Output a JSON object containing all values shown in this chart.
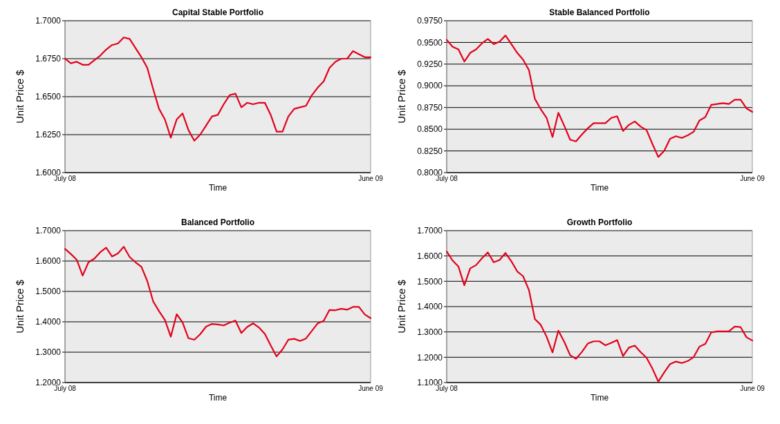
{
  "chart_data": [
    {
      "type": "line",
      "title": "Capital Stable Portfolio",
      "xlabel": "Time",
      "ylabel": "Unit Price $",
      "grid": "y",
      "marker": "none",
      "categories": [
        "July 08",
        null,
        null,
        null,
        null,
        null,
        null,
        null,
        null,
        null,
        null,
        null,
        null,
        null,
        null,
        null,
        null,
        null,
        null,
        null,
        null,
        null,
        null,
        null,
        null,
        null,
        null,
        null,
        null,
        null,
        null,
        null,
        null,
        null,
        null,
        null,
        null,
        null,
        null,
        null,
        null,
        null,
        null,
        null,
        null,
        null,
        null,
        null,
        null,
        null,
        null,
        null,
        "June 09"
      ],
      "ylim": [
        1.6,
        1.7
      ],
      "yticks": [
        {
          "value": 1.6,
          "label": "1.6000"
        },
        {
          "value": 1.625,
          "label": "1.6250"
        },
        {
          "value": 1.65,
          "label": "1.6500"
        },
        {
          "value": 1.675,
          "label": "1.6750"
        },
        {
          "value": 1.7,
          "label": "1.7000"
        }
      ],
      "series": [
        {
          "color": "#e3001b",
          "values": [
            1.675,
            1.672,
            1.673,
            1.671,
            1.671,
            1.674,
            1.677,
            1.681,
            1.684,
            1.685,
            1.689,
            1.688,
            1.682,
            1.676,
            1.669,
            1.655,
            1.642,
            1.635,
            1.623,
            1.635,
            1.639,
            1.628,
            1.621,
            1.625,
            1.631,
            1.637,
            1.638,
            1.645,
            1.651,
            1.652,
            1.643,
            1.646,
            1.645,
            1.646,
            1.646,
            1.638,
            1.627,
            1.627,
            1.637,
            1.642,
            1.643,
            1.644,
            1.651,
            1.656,
            1.66,
            1.669,
            1.673,
            1.675,
            1.675,
            1.68,
            1.678,
            1.676,
            1.676
          ]
        }
      ]
    },
    {
      "type": "line",
      "title": "Stable Balanced Portfolio",
      "xlabel": "Time",
      "ylabel": "Unit Price $",
      "grid": "y",
      "marker": "none",
      "categories": [
        "July 08",
        null,
        null,
        null,
        null,
        null,
        null,
        null,
        null,
        null,
        null,
        null,
        null,
        null,
        null,
        null,
        null,
        null,
        null,
        null,
        null,
        null,
        null,
        null,
        null,
        null,
        null,
        null,
        null,
        null,
        null,
        null,
        null,
        null,
        null,
        null,
        null,
        null,
        null,
        null,
        null,
        null,
        null,
        null,
        null,
        null,
        null,
        null,
        null,
        null,
        null,
        null,
        "June 09"
      ],
      "ylim": [
        0.8,
        0.975
      ],
      "yticks": [
        {
          "value": 0.8,
          "label": "0.8000"
        },
        {
          "value": 0.825,
          "label": "0.8250"
        },
        {
          "value": 0.85,
          "label": "0.8500"
        },
        {
          "value": 0.875,
          "label": "0.8750"
        },
        {
          "value": 0.9,
          "label": "0.9000"
        },
        {
          "value": 0.925,
          "label": "0.9250"
        },
        {
          "value": 0.95,
          "label": "0.9500"
        },
        {
          "value": 0.975,
          "label": "0.9750"
        }
      ],
      "series": [
        {
          "color": "#e3001b",
          "values": [
            0.953,
            0.945,
            0.942,
            0.928,
            0.938,
            0.942,
            0.949,
            0.954,
            0.948,
            0.951,
            0.958,
            0.948,
            0.938,
            0.93,
            0.918,
            0.885,
            0.873,
            0.863,
            0.841,
            0.869,
            0.854,
            0.838,
            0.836,
            0.844,
            0.851,
            0.857,
            0.857,
            0.857,
            0.863,
            0.865,
            0.848,
            0.855,
            0.859,
            0.853,
            0.849,
            0.833,
            0.818,
            0.825,
            0.839,
            0.842,
            0.84,
            0.843,
            0.847,
            0.86,
            0.864,
            0.878,
            0.879,
            0.88,
            0.879,
            0.884,
            0.884,
            0.874,
            0.87
          ]
        }
      ]
    },
    {
      "type": "line",
      "title": "Balanced Portfolio",
      "xlabel": "Time",
      "ylabel": "Unit Price $",
      "grid": "y",
      "marker": "none",
      "categories": [
        "July 08",
        null,
        null,
        null,
        null,
        null,
        null,
        null,
        null,
        null,
        null,
        null,
        null,
        null,
        null,
        null,
        null,
        null,
        null,
        null,
        null,
        null,
        null,
        null,
        null,
        null,
        null,
        null,
        null,
        null,
        null,
        null,
        null,
        null,
        null,
        null,
        null,
        null,
        null,
        null,
        null,
        null,
        null,
        null,
        null,
        null,
        null,
        null,
        null,
        null,
        null,
        null,
        "June 09"
      ],
      "ylim": [
        1.2,
        1.7
      ],
      "yticks": [
        {
          "value": 1.2,
          "label": "1.2000"
        },
        {
          "value": 1.3,
          "label": "1.3000"
        },
        {
          "value": 1.4,
          "label": "1.4000"
        },
        {
          "value": 1.5,
          "label": "1.5000"
        },
        {
          "value": 1.6,
          "label": "1.6000"
        },
        {
          "value": 1.7,
          "label": "1.7000"
        }
      ],
      "series": [
        {
          "color": "#e3001b",
          "values": [
            1.64,
            1.623,
            1.604,
            1.552,
            1.596,
            1.608,
            1.629,
            1.644,
            1.615,
            1.625,
            1.647,
            1.613,
            1.596,
            1.581,
            1.534,
            1.467,
            1.435,
            1.406,
            1.351,
            1.425,
            1.398,
            1.346,
            1.341,
            1.359,
            1.384,
            1.393,
            1.391,
            1.388,
            1.397,
            1.404,
            1.363,
            1.383,
            1.395,
            1.381,
            1.36,
            1.322,
            1.286,
            1.309,
            1.341,
            1.344,
            1.337,
            1.345,
            1.37,
            1.395,
            1.403,
            1.439,
            1.438,
            1.443,
            1.44,
            1.449,
            1.449,
            1.424,
            1.412
          ]
        }
      ]
    },
    {
      "type": "line",
      "title": "Growth Portfolio",
      "xlabel": "Time",
      "ylabel": "Unit Price $",
      "grid": "y",
      "marker": "none",
      "categories": [
        "July 08",
        null,
        null,
        null,
        null,
        null,
        null,
        null,
        null,
        null,
        null,
        null,
        null,
        null,
        null,
        null,
        null,
        null,
        null,
        null,
        null,
        null,
        null,
        null,
        null,
        null,
        null,
        null,
        null,
        null,
        null,
        null,
        null,
        null,
        null,
        null,
        null,
        null,
        null,
        null,
        null,
        null,
        null,
        null,
        null,
        null,
        null,
        null,
        null,
        null,
        null,
        null,
        "June 09"
      ],
      "ylim": [
        1.1,
        1.7
      ],
      "yticks": [
        {
          "value": 1.1,
          "label": "1.1000"
        },
        {
          "value": 1.2,
          "label": "1.2000"
        },
        {
          "value": 1.3,
          "label": "1.3000"
        },
        {
          "value": 1.4,
          "label": "1.4000"
        },
        {
          "value": 1.5,
          "label": "1.5000"
        },
        {
          "value": 1.6,
          "label": "1.6000"
        },
        {
          "value": 1.7,
          "label": "1.7000"
        }
      ],
      "series": [
        {
          "color": "#e3001b",
          "values": [
            1.618,
            1.582,
            1.558,
            1.484,
            1.551,
            1.564,
            1.591,
            1.614,
            1.575,
            1.584,
            1.612,
            1.579,
            1.539,
            1.52,
            1.465,
            1.351,
            1.328,
            1.281,
            1.219,
            1.305,
            1.261,
            1.208,
            1.194,
            1.221,
            1.254,
            1.263,
            1.263,
            1.247,
            1.257,
            1.268,
            1.205,
            1.238,
            1.246,
            1.22,
            1.198,
            1.155,
            1.104,
            1.14,
            1.173,
            1.183,
            1.177,
            1.185,
            1.2,
            1.242,
            1.253,
            1.298,
            1.302,
            1.302,
            1.302,
            1.321,
            1.319,
            1.279,
            1.266
          ]
        }
      ]
    }
  ]
}
